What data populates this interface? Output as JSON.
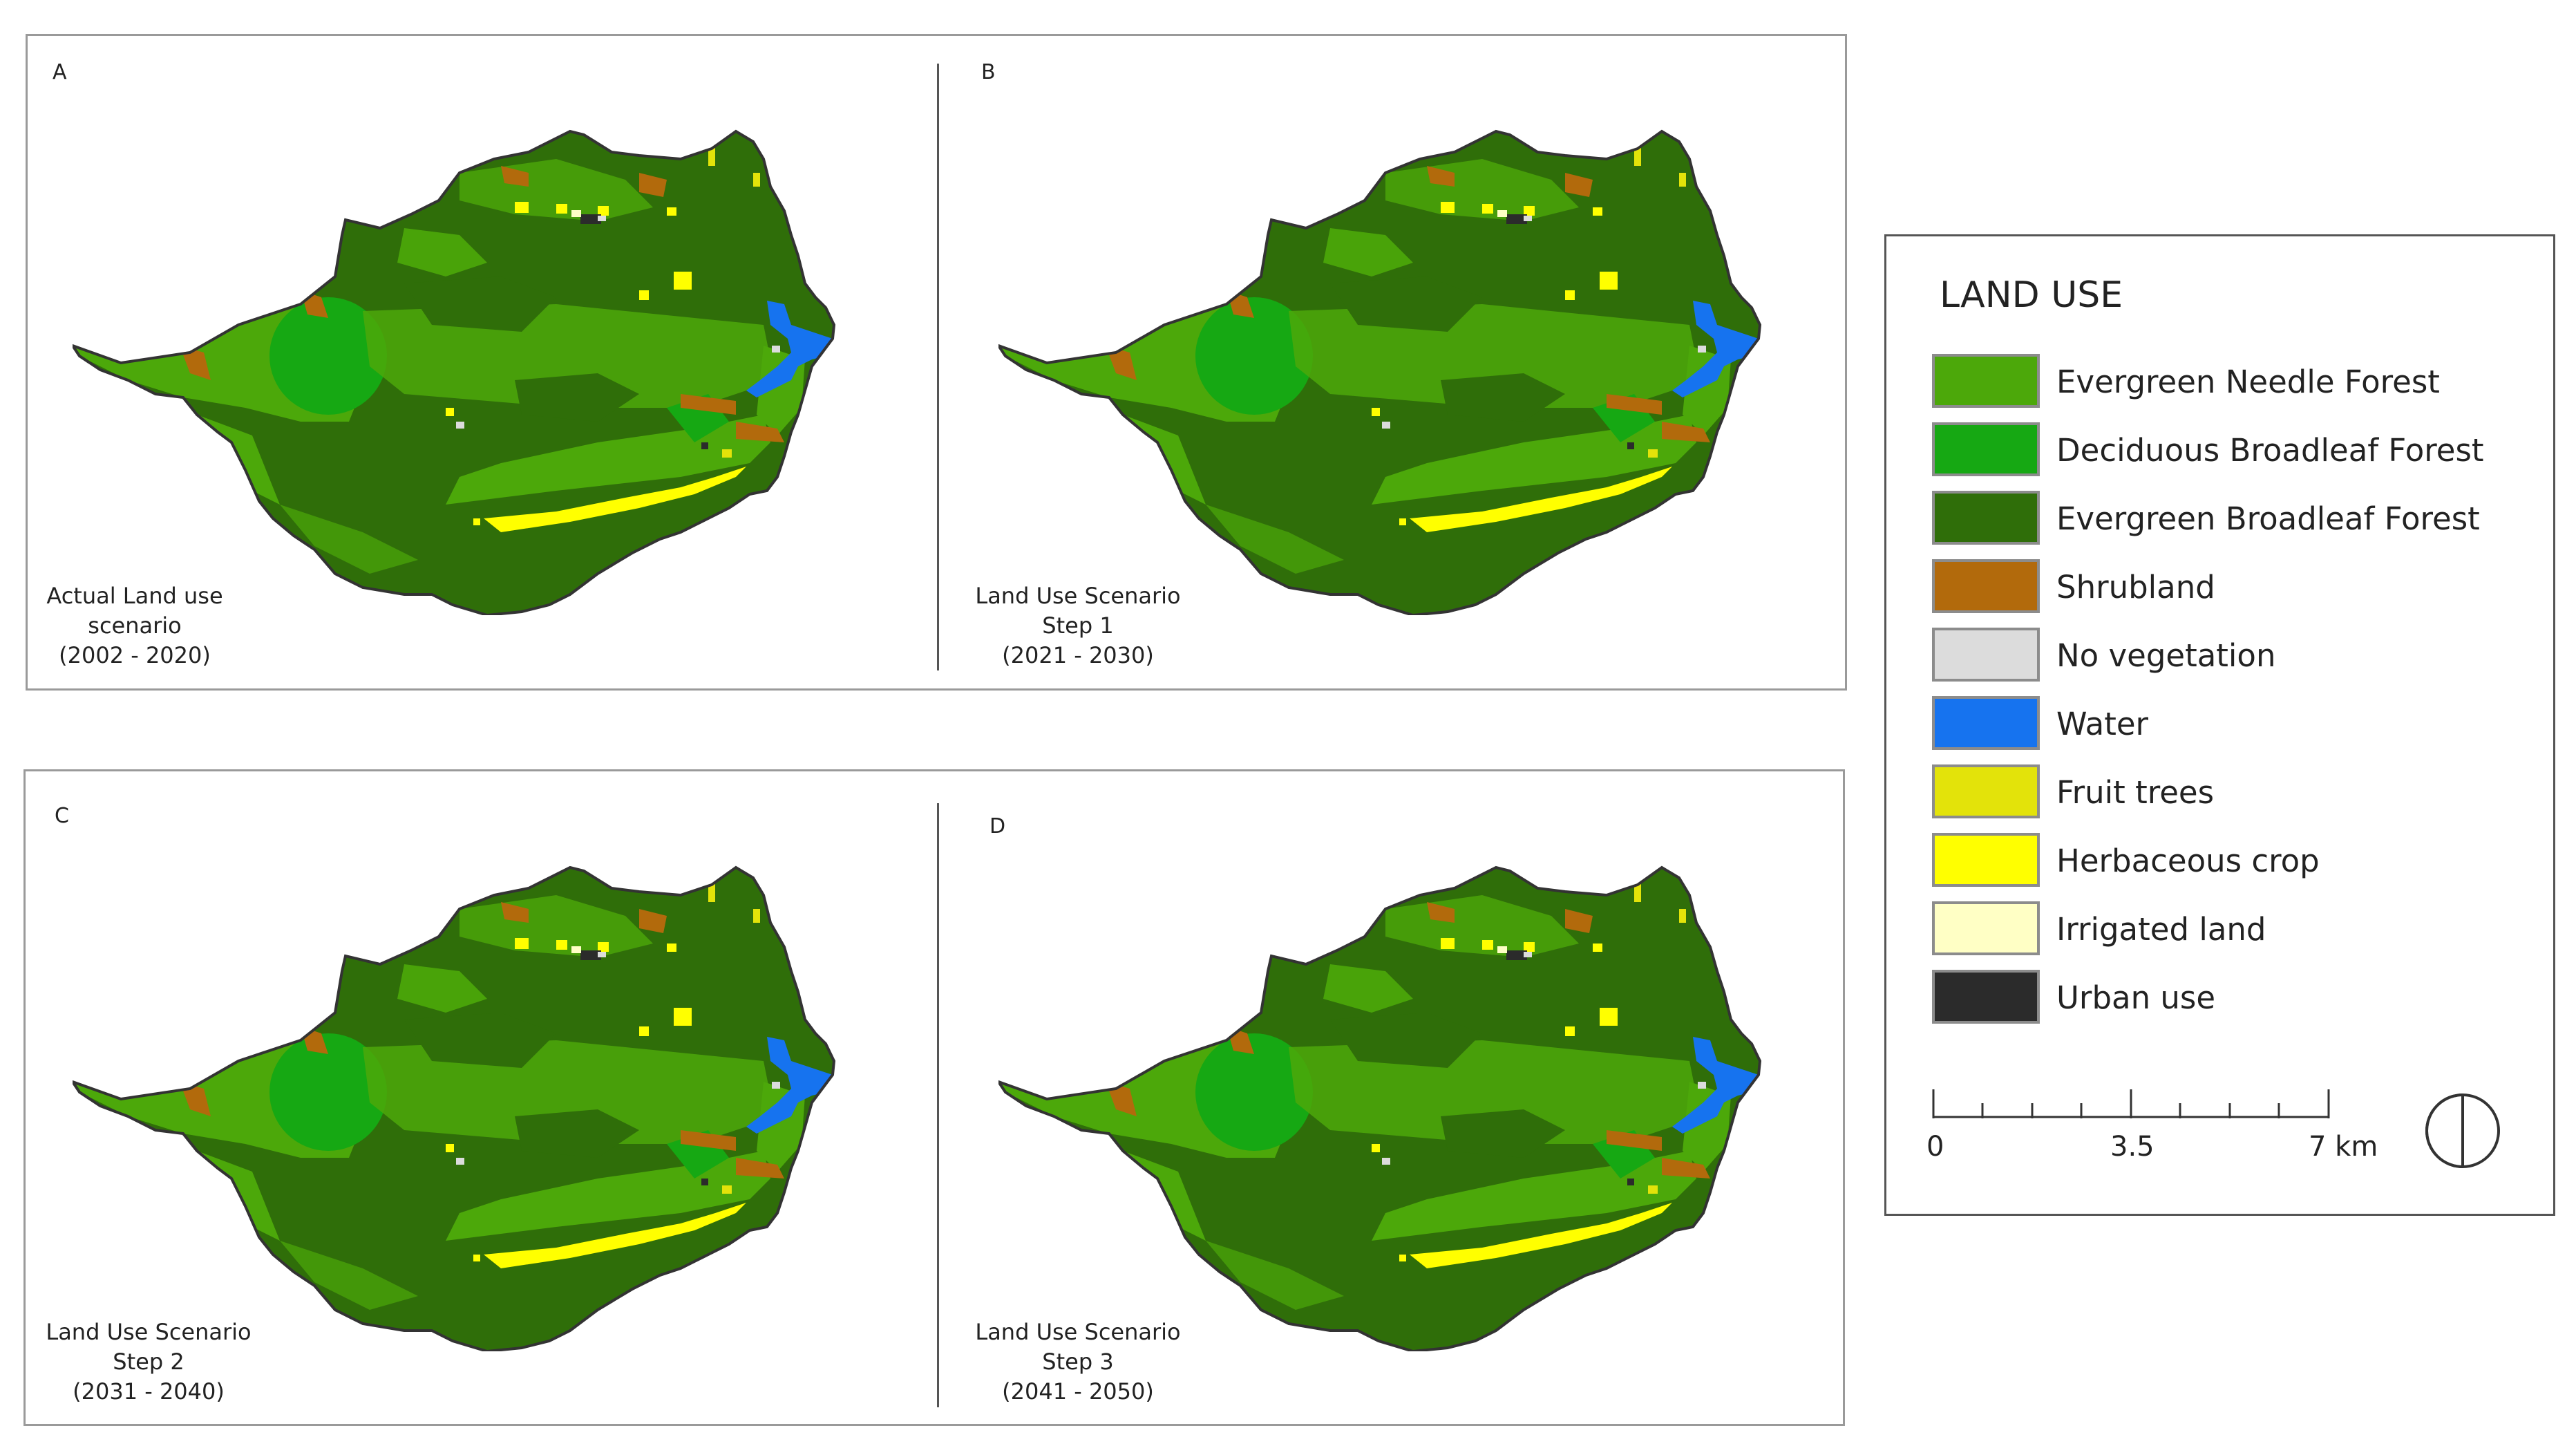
{
  "panels": [
    {
      "letter": "A",
      "caption": [
        "Actual Land use",
        "scenario",
        "(2002 - 2020)"
      ]
    },
    {
      "letter": "B",
      "caption": [
        "Land Use Scenario",
        "Step 1",
        "(2021 - 2030)"
      ]
    },
    {
      "letter": "C",
      "caption": [
        "Land Use Scenario",
        "Step 2",
        "(2031 - 2040)"
      ]
    },
    {
      "letter": "D",
      "caption": [
        "Land Use Scenario",
        "Step 3",
        "(2041 - 2050)"
      ]
    }
  ],
  "legend": {
    "title": "LAND USE",
    "items": [
      {
        "label": "Evergreen Needle Forest",
        "color": "#4ca80a"
      },
      {
        "label": "Deciduous Broadleaf Forest",
        "color": "#16a813"
      },
      {
        "label": "Evergreen Broadleaf Forest",
        "color": "#2f6e09"
      },
      {
        "label": "Shrubland",
        "color": "#b26a0c"
      },
      {
        "label": "No vegetation",
        "color": "#dcdcdc"
      },
      {
        "label": "Water",
        "color": "#1673ef"
      },
      {
        "label": "Fruit trees",
        "color": "#e3e30a"
      },
      {
        "label": "Herbaceous crop",
        "color": "#ffff00"
      },
      {
        "label": "Irrigated land",
        "color": "#ffffc5"
      },
      {
        "label": "Urban use",
        "color": "#2b2b2b"
      }
    ]
  },
  "scale": {
    "ticks": [
      "0",
      "3.5",
      "7 km"
    ]
  }
}
